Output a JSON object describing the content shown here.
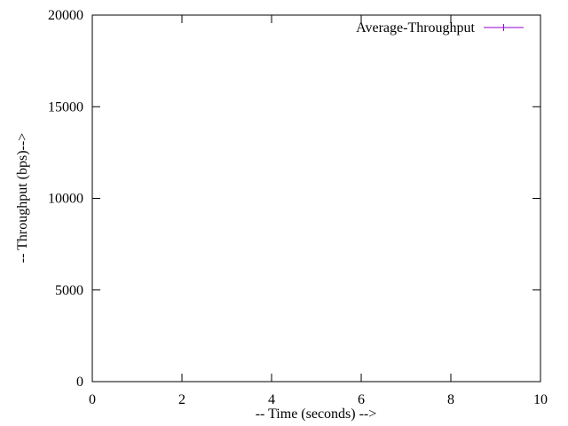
{
  "chart_data": {
    "type": "line",
    "title": "",
    "xlabel": "-- Time (seconds) -->",
    "ylabel": "-- Throughput (bps)-->",
    "xlim": [
      0,
      10
    ],
    "ylim": [
      0,
      20000
    ],
    "x_ticks": [
      0,
      2,
      4,
      6,
      8,
      10
    ],
    "y_ticks": [
      0,
      5000,
      10000,
      15000,
      20000
    ],
    "grid": false,
    "legend_position": "top-right",
    "series": [
      {
        "name": "Average-Throughput",
        "color": "#9400d3",
        "marker": "plus",
        "x": [],
        "y": []
      }
    ]
  }
}
